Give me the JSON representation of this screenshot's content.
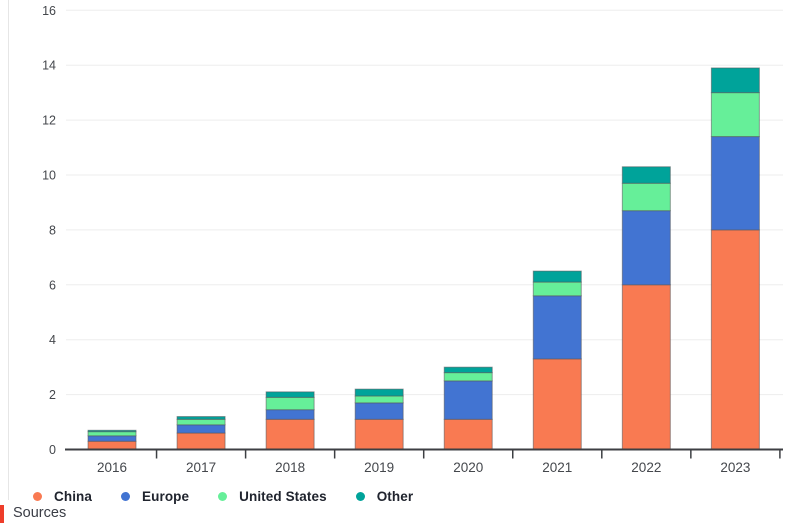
{
  "chart_data": {
    "type": "bar",
    "stacked": true,
    "title": "",
    "xlabel": "",
    "ylabel": "",
    "categories": [
      "2016",
      "2017",
      "2018",
      "2019",
      "2020",
      "2021",
      "2022",
      "2023"
    ],
    "series": [
      {
        "name": "China",
        "color": "#f97a52",
        "values": [
          0.3,
          0.6,
          1.1,
          1.1,
          1.1,
          3.3,
          6.0,
          8.0
        ]
      },
      {
        "name": "Europe",
        "color": "#4274d2",
        "values": [
          0.2,
          0.3,
          0.35,
          0.6,
          1.4,
          2.3,
          2.7,
          3.4
        ]
      },
      {
        "name": "United States",
        "color": "#66ef99",
        "values": [
          0.15,
          0.2,
          0.45,
          0.25,
          0.3,
          0.5,
          1.0,
          1.6
        ]
      },
      {
        "name": "Other",
        "color": "#00a39a",
        "values": [
          0.05,
          0.1,
          0.2,
          0.25,
          0.2,
          0.4,
          0.6,
          0.9
        ]
      }
    ],
    "totals": [
      0.7,
      1.2,
      2.1,
      2.2,
      3.0,
      6.5,
      10.3,
      13.9
    ],
    "ylim": [
      0,
      16
    ],
    "ytick_step": 2,
    "ytick_labels": [
      "0",
      "2",
      "4",
      "6",
      "8",
      "10",
      "12",
      "14",
      "16"
    ],
    "grid": true,
    "legend_position": "bottom",
    "colors": {
      "axis": "#3d3f43",
      "gridline": "#ededed",
      "tick_label": "#44474c",
      "segment_outline": "#55565a"
    }
  },
  "footer": {
    "sources_label": "Sources",
    "mark_color": "#ee3d2a"
  }
}
